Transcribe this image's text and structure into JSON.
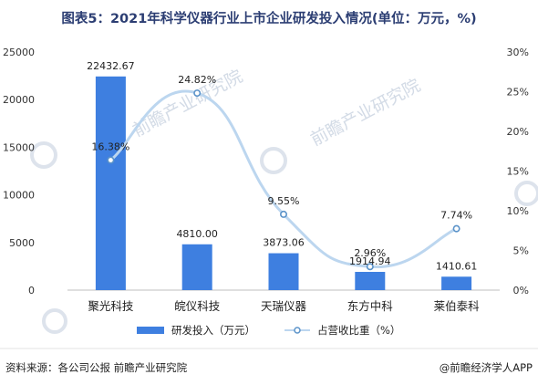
{
  "header": {
    "title": "图表5：2021年科学仪器行业上市企业研发投入情况(单位：万元，%)"
  },
  "footer": {
    "source": "资料来源：各公司公报 前瞻产业研究院",
    "brand": "@前瞻经济学人APP"
  },
  "watermark": {
    "text": "前瞻产业研究院"
  },
  "colors": {
    "bar": "#3e7fe0",
    "line": "#bcd6ef",
    "marker_fill": "#ffffff",
    "marker_stroke": "#5b93c9",
    "axis": "#bfbfbf",
    "title": "#2c3e73"
  },
  "chart_data": {
    "type": "bar",
    "categories": [
      "聚光科技",
      "皖仪科技",
      "天瑞仪器",
      "东方中科",
      "莱伯泰科"
    ],
    "series": [
      {
        "name": "研发投入（万元）",
        "type": "bar",
        "axis": "left",
        "values": [
          22432.67,
          4810.0,
          3873.06,
          1914.94,
          1410.61
        ],
        "labels": [
          "22432.67",
          "4810.00",
          "3873.06",
          "1914.94",
          "1410.61"
        ]
      },
      {
        "name": "占营收比重（%）",
        "type": "line",
        "axis": "right",
        "smooth": true,
        "values": [
          16.38,
          24.82,
          9.55,
          2.96,
          7.74
        ],
        "labels": [
          "16.38%",
          "24.82%",
          "9.55%",
          "2.96%",
          "7.74%"
        ]
      }
    ],
    "y_left": {
      "range": [
        0,
        25000
      ],
      "ticks": [
        0,
        5000,
        10000,
        15000,
        20000,
        25000
      ],
      "tick_labels": [
        "0",
        "5000",
        "10000",
        "15000",
        "20000",
        "25000"
      ]
    },
    "y_right": {
      "range": [
        0,
        30
      ],
      "ticks": [
        0,
        5,
        10,
        15,
        20,
        25,
        30
      ],
      "tick_labels": [
        "0%",
        "5%",
        "10%",
        "15%",
        "20%",
        "25%",
        "30%"
      ]
    },
    "grid": false,
    "legend_position": "bottom-center"
  }
}
